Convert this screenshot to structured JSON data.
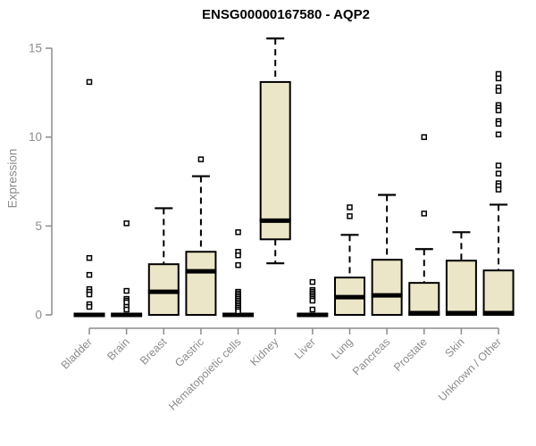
{
  "chart_data": {
    "type": "boxplot",
    "title": "ENSG00000167580 - AQP2",
    "xlabel": "",
    "ylabel": "Expression",
    "ylim": [
      0,
      15.6
    ],
    "yticks": [
      0,
      5,
      10,
      15
    ],
    "grid": false,
    "legend": "none",
    "box_fill_color": "#ece6c8",
    "box_border_color": "#000000",
    "axis_color": "#8c8c8c",
    "categories": [
      "Bladder",
      "Brain",
      "Breast",
      "Gastric",
      "Hematopoietic cells",
      "Kidney",
      "Liver",
      "Lung",
      "Pancreas",
      "Prostate",
      "Skin",
      "Unknown / Other"
    ],
    "series": [
      {
        "category": "Bladder",
        "whisker_low": 0,
        "q1": 0,
        "median": 0,
        "q3": 0,
        "whisker_high": 0,
        "outliers": [
          13.1,
          3.2,
          2.25,
          1.45,
          1.3,
          1.15,
          0.6,
          0.45
        ]
      },
      {
        "category": "Brain",
        "whisker_low": 0,
        "q1": 0,
        "median": 0,
        "q3": 0,
        "whisker_high": 0,
        "outliers": [
          5.15,
          1.35,
          0.9,
          0.8,
          0.7,
          0.45,
          0.3
        ]
      },
      {
        "category": "Breast",
        "whisker_low": 0,
        "q1": 0,
        "median": 1.3,
        "q3": 2.85,
        "whisker_high": 6.0,
        "outliers": []
      },
      {
        "category": "Gastric",
        "whisker_low": 0,
        "q1": 0,
        "median": 2.45,
        "q3": 3.55,
        "whisker_high": 7.8,
        "outliers": [
          8.75
        ]
      },
      {
        "category": "Hematopoietic cells",
        "whisker_low": 0,
        "q1": 0,
        "median": 0,
        "q3": 0,
        "whisker_high": 0,
        "outliers": [
          4.65,
          3.55,
          3.35,
          2.8,
          1.3,
          1.2,
          1.1,
          1.0,
          0.9,
          0.8,
          0.7,
          0.6,
          0.5,
          0.4,
          0.3,
          0.2
        ]
      },
      {
        "category": "Kidney",
        "whisker_low": 2.9,
        "q1": 4.25,
        "median": 5.3,
        "q3": 13.1,
        "whisker_high": 15.55,
        "outliers": []
      },
      {
        "category": "Liver",
        "whisker_low": 0,
        "q1": 0,
        "median": 0,
        "q3": 0,
        "whisker_high": 0,
        "outliers": [
          1.85,
          1.4,
          1.3,
          1.2,
          1.1,
          1.0,
          0.9,
          0.8,
          0.3
        ]
      },
      {
        "category": "Lung",
        "whisker_low": 0,
        "q1": 0,
        "median": 1.0,
        "q3": 2.1,
        "whisker_high": 4.5,
        "outliers": [
          6.05,
          5.55
        ]
      },
      {
        "category": "Pancreas",
        "whisker_low": 0,
        "q1": 0,
        "median": 1.1,
        "q3": 3.1,
        "whisker_high": 6.75,
        "outliers": []
      },
      {
        "category": "Prostate",
        "whisker_low": 0,
        "q1": 0,
        "median": 0.1,
        "q3": 1.8,
        "whisker_high": 3.7,
        "outliers": [
          10.0,
          5.7
        ]
      },
      {
        "category": "Skin",
        "whisker_low": 0,
        "q1": 0,
        "median": 0.1,
        "q3": 3.05,
        "whisker_high": 4.65,
        "outliers": []
      },
      {
        "category": "Unknown / Other",
        "whisker_low": 0,
        "q1": 0,
        "median": 0.1,
        "q3": 2.5,
        "whisker_high": 6.2,
        "outliers": [
          13.55,
          13.3,
          12.8,
          12.6,
          11.8,
          11.65,
          11.5,
          10.9,
          10.75,
          10.15,
          8.4,
          7.95,
          7.4,
          7.25,
          7.05
        ]
      }
    ]
  }
}
